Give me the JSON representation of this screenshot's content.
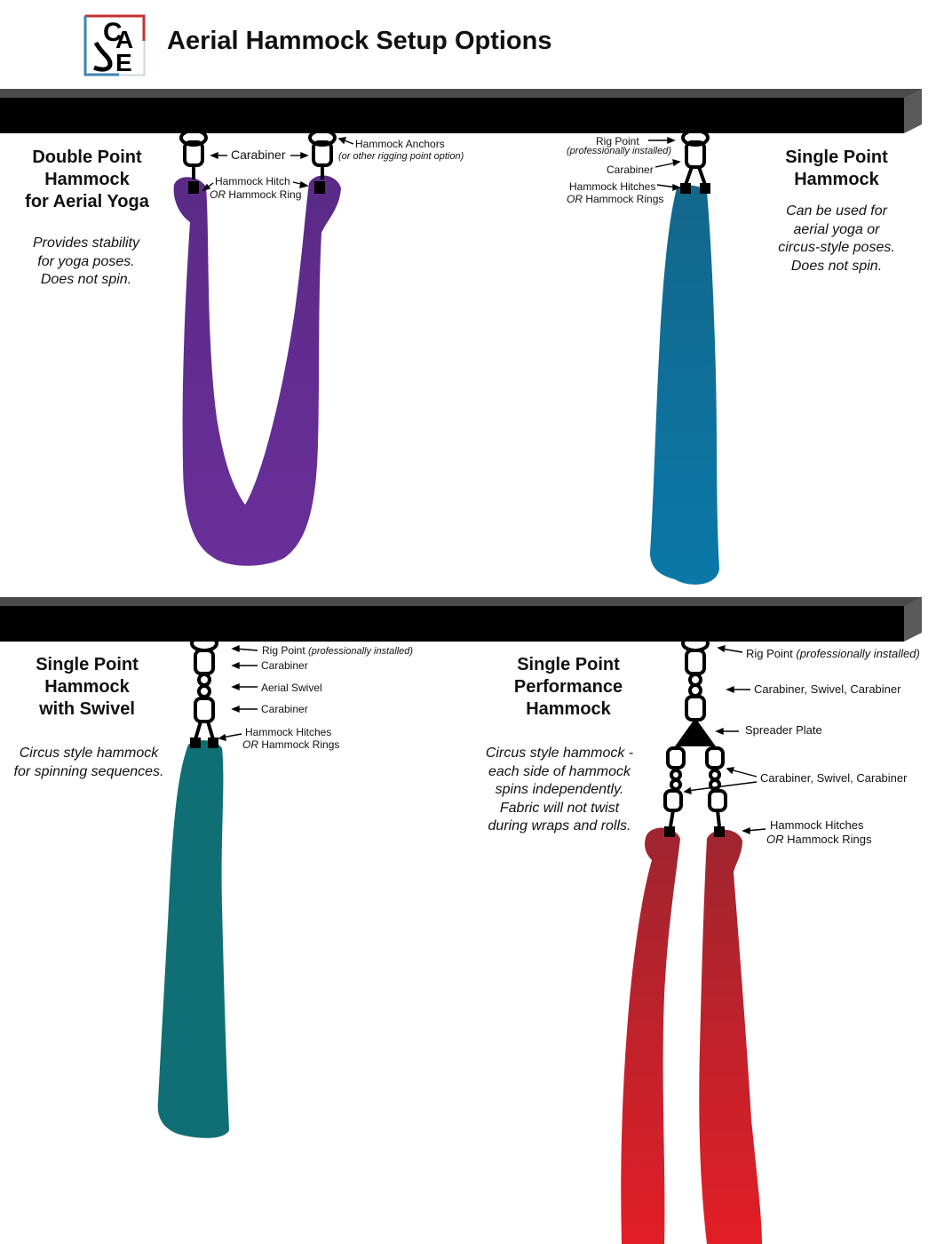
{
  "header": {
    "title": "Aerial Hammock Setup Options",
    "logo_letters": [
      "C",
      "A",
      "E"
    ]
  },
  "colors": {
    "beam": "#000000",
    "beam_top": "#4a4a4a",
    "beam_side": "#555555",
    "purple": "#5b2a86",
    "blue": "#0b6f95",
    "teal": "#0f6f74",
    "red": "#b3212c",
    "logo_red": "#c5312f",
    "logo_blue": "#3f83b3"
  },
  "panels": {
    "double_point": {
      "heading": [
        "Double Point",
        "Hammock",
        "for Aerial Yoga"
      ],
      "desc": [
        "Provides stability",
        "for yoga poses.",
        "Does not spin."
      ],
      "labels": {
        "carabiner": "Carabiner",
        "anchors": "Hammock Anchors",
        "anchors_sub": "(or other rigging point option)",
        "hitch": "Hammock Hitch",
        "or": "OR",
        "ring": "Hammock Ring"
      }
    },
    "single_point": {
      "heading": [
        "Single Point",
        "Hammock"
      ],
      "desc": [
        "Can be used for",
        "aerial yoga or",
        "circus-style poses.",
        "Does not spin."
      ],
      "labels": {
        "rig": "Rig Point",
        "rig_sub": "(professionally installed)",
        "carabiner": "Carabiner",
        "hitches": "Hammock Hitches",
        "or": "OR",
        "rings": "Hammock Rings"
      }
    },
    "swivel": {
      "heading": [
        "Single Point",
        "Hammock",
        "with Swivel"
      ],
      "desc": [
        "Circus style hammock",
        "for spinning sequences."
      ],
      "labels": {
        "rig": "Rig Point",
        "rig_sub": "(professionally installed)",
        "carabiner1": "Carabiner",
        "swivel": "Aerial Swivel",
        "carabiner2": "Carabiner",
        "hitches": "Hammock Hitches",
        "or": "OR",
        "rings": "Hammock Rings"
      }
    },
    "performance": {
      "heading": [
        "Single Point",
        "Performance",
        "Hammock"
      ],
      "desc": [
        "Circus style hammock -",
        "each side of hammock",
        "spins independently.",
        "Fabric will not twist",
        "during wraps and rolls."
      ],
      "labels": {
        "rig": "Rig Point",
        "rig_sub": "(professionally installed)",
        "csc1": "Carabiner, Swivel, Carabiner",
        "spreader": "Spreader Plate",
        "csc2": "Carabiner, Swivel, Carabiner",
        "hitches": "Hammock Hitches",
        "or": "OR",
        "rings": "Hammock Rings"
      }
    }
  }
}
